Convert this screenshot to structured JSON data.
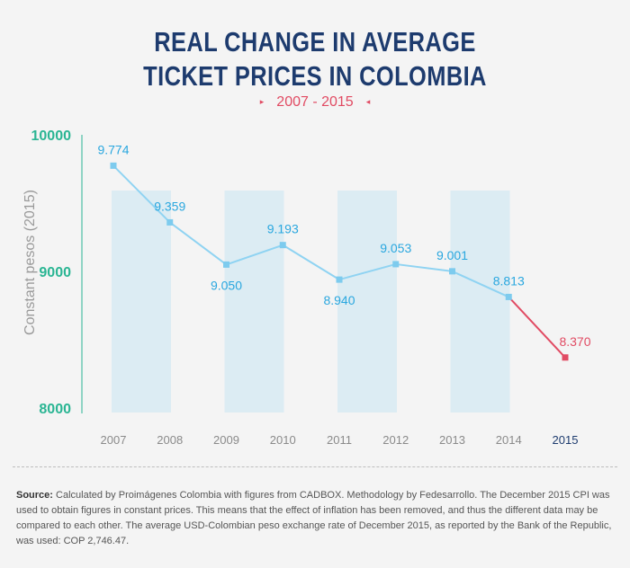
{
  "header": {
    "title_line1": "REAL CHANGE IN AVERAGE",
    "title_line2": "TICKET PRICES IN COLOMBIA",
    "subtitle": "2007 - 2015",
    "subtitle_left_marker": "▸",
    "subtitle_right_marker": "◂"
  },
  "chart_data": {
    "type": "line",
    "title": "REAL CHANGE IN AVERAGE TICKET PRICES IN COLOMBIA",
    "subtitle": "2007 - 2015",
    "xlabel": "",
    "ylabel": "Constant pesos (2015)",
    "ylim": [
      8000,
      10000
    ],
    "yticks": [
      10000,
      9000,
      8000
    ],
    "categories": [
      "2007",
      "2008",
      "2009",
      "2010",
      "2011",
      "2012",
      "2013",
      "2014",
      "2015"
    ],
    "values": [
      9774,
      9359,
      9050,
      9193,
      8940,
      9053,
      9001,
      8813,
      8370
    ],
    "data_labels": [
      "9.774",
      "9.359",
      "9.050",
      "9.193",
      "8.940",
      "9.053",
      "9.001",
      "8.813",
      "8.370"
    ],
    "highlight_category": "2015",
    "grid": false,
    "colors": {
      "line": "#8fd3f2",
      "marker": "#7dcbee",
      "label": "#2aa7df",
      "highlight": "#e14b63",
      "highlight_year": "#1d3b6e",
      "axis": "#2ab593",
      "band": "#d4e9f3"
    }
  },
  "footer": {
    "source_label": "Source:",
    "source_text": " Calculated by Proimágenes Colombia with figures from CADBOX. Methodology by Fedesarrollo. The December 2015 CPI was used to obtain figures in constant prices. This means that the effect of inflation has been removed, and thus the different data may be compared to each other. The average USD-Colombian peso exchange rate of December 2015, as reported by the Bank of the Republic, was used: COP 2,746.47."
  }
}
